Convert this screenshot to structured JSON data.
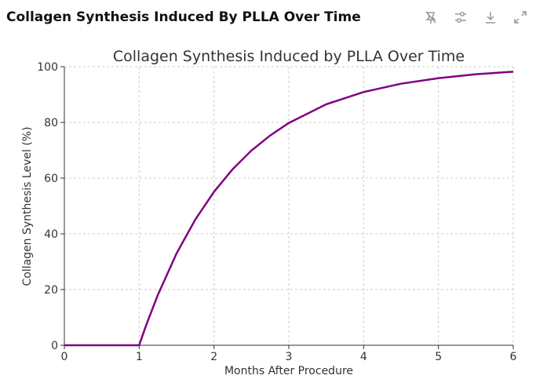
{
  "header": {
    "title": "Collagen Synthesis Induced By PLLA Over Time"
  },
  "toolbar": {
    "icons": [
      "pin-off-icon",
      "settings-sliders-icon",
      "download-icon",
      "expand-icon"
    ]
  },
  "chart_data": {
    "type": "line",
    "title": "Collagen Synthesis Induced by PLLA Over Time",
    "xlabel": "Months After Procedure",
    "ylabel": "Collagen Synthesis Level (%)",
    "xlim": [
      0,
      6
    ],
    "ylim": [
      0,
      100
    ],
    "xticks": [
      "0",
      "1",
      "2",
      "3",
      "4",
      "5",
      "6"
    ],
    "yticks": [
      "0",
      "20",
      "40",
      "60",
      "80",
      "100"
    ],
    "grid": true,
    "color": "#800080",
    "series": [
      {
        "name": "Collagen Synthesis",
        "x": [
          0,
          0.5,
          1,
          1.05,
          1.1,
          1.25,
          1.5,
          1.75,
          2,
          2.25,
          2.5,
          2.75,
          3,
          3.5,
          4,
          4.5,
          5,
          5.5,
          6
        ],
        "y": [
          0,
          0,
          0,
          3.9,
          7.7,
          18.1,
          33.0,
          45.1,
          55.1,
          63.2,
          69.9,
          75.3,
          79.8,
          86.5,
          90.9,
          93.9,
          95.9,
          97.3,
          98.2
        ]
      }
    ]
  }
}
